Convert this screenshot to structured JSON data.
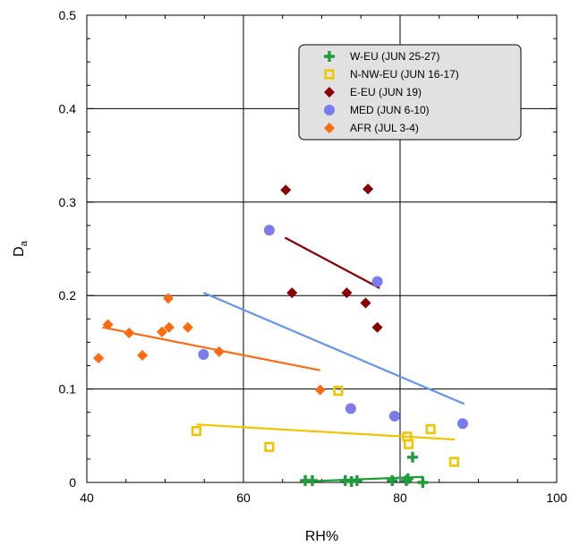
{
  "chart_data": {
    "type": "scatter",
    "xlabel": "RH%",
    "ylabel": "D",
    "ylabel_sub": "a",
    "xlim": [
      40,
      100
    ],
    "ylim": [
      0,
      0.5
    ],
    "x_ticks": [
      40,
      60,
      80,
      100
    ],
    "x_tick_labels": [
      "40",
      "60",
      "80",
      "100"
    ],
    "y_ticks": [
      0,
      0.1,
      0.2,
      0.3,
      0.4,
      0.5
    ],
    "y_tick_labels": [
      "0",
      "0.1",
      "0.2",
      "0.3",
      "0.4",
      "0.5"
    ],
    "grid": true,
    "legend_position": "top-right",
    "series": [
      {
        "name": "W-EU (JUN 25-27)",
        "marker": "plus",
        "color": "#1e9e3a",
        "points": [
          [
            67.9,
            0.002
          ],
          [
            68.8,
            0.002
          ],
          [
            73.0,
            0.002
          ],
          [
            73.8,
            0.001
          ],
          [
            74.5,
            0.002
          ],
          [
            79.0,
            0.002
          ],
          [
            80.8,
            0.002
          ],
          [
            81.0,
            0.004
          ],
          [
            81.6,
            0.027
          ],
          [
            82.9,
            0.0
          ]
        ],
        "trend": [
          [
            67.5,
            0.001
          ],
          [
            83.0,
            0.006
          ]
        ]
      },
      {
        "name": "N-NW-EU (JUN 16-17)",
        "marker": "square-open",
        "color": "#f2c500",
        "points": [
          [
            54.0,
            0.055
          ],
          [
            63.3,
            0.038
          ],
          [
            72.1,
            0.098
          ],
          [
            80.9,
            0.049
          ],
          [
            81.1,
            0.041
          ],
          [
            83.9,
            0.057
          ],
          [
            86.9,
            0.022
          ]
        ],
        "trend": [
          [
            54.0,
            0.062
          ],
          [
            87.0,
            0.046
          ]
        ]
      },
      {
        "name": "E-EU (JUN 19)",
        "marker": "diamond",
        "color": "#8b0000",
        "points": [
          [
            65.4,
            0.313
          ],
          [
            75.9,
            0.314
          ],
          [
            66.2,
            0.203
          ],
          [
            73.2,
            0.203
          ],
          [
            75.6,
            0.192
          ],
          [
            77.1,
            0.166
          ]
        ],
        "trend": [
          [
            65.3,
            0.262
          ],
          [
            77.4,
            0.208
          ]
        ]
      },
      {
        "name": "MED (JUN 6-10)",
        "marker": "circle",
        "color": "#7b7bf0",
        "points": [
          [
            63.3,
            0.27
          ],
          [
            77.1,
            0.215
          ],
          [
            54.9,
            0.137
          ],
          [
            73.7,
            0.079
          ],
          [
            79.3,
            0.071
          ],
          [
            88.0,
            0.063
          ]
        ],
        "trend": [
          [
            54.9,
            0.203
          ],
          [
            88.2,
            0.084
          ]
        ]
      },
      {
        "name": "AFR (JUL 3-4)",
        "marker": "diamond",
        "color": "#ff6a10",
        "points": [
          [
            41.5,
            0.133
          ],
          [
            42.7,
            0.169
          ],
          [
            45.4,
            0.16
          ],
          [
            47.1,
            0.136
          ],
          [
            49.6,
            0.161
          ],
          [
            50.4,
            0.197
          ],
          [
            50.5,
            0.166
          ],
          [
            52.9,
            0.166
          ],
          [
            56.9,
            0.14
          ],
          [
            69.8,
            0.099
          ]
        ],
        "trend": [
          [
            42.0,
            0.166
          ],
          [
            69.8,
            0.12
          ]
        ]
      }
    ],
    "trend_colors": [
      "#1e9e3a",
      "#f2c500",
      "#8b0000",
      "#6495ed",
      "#ff6a10"
    ]
  }
}
